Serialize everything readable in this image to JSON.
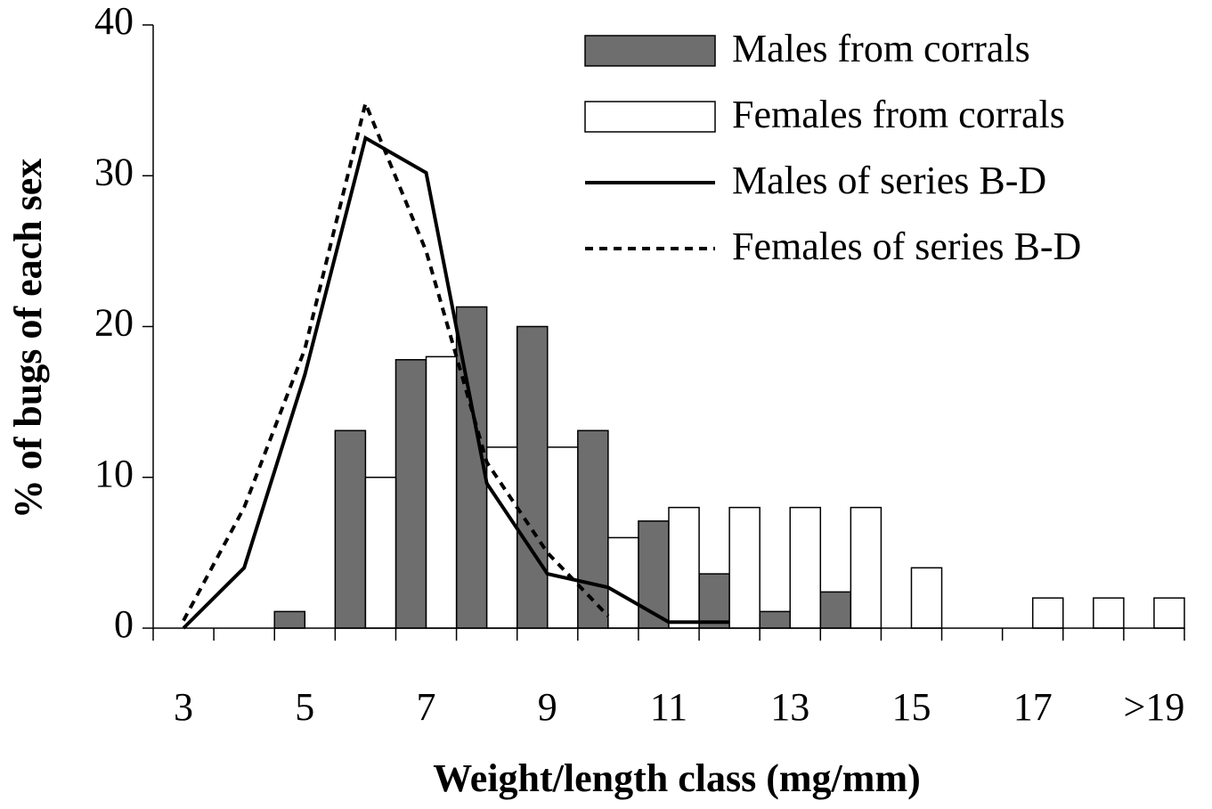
{
  "chart_data": {
    "type": "bar",
    "xlabel": "Weight/length class (mg/mm)",
    "ylabel": "% of bugs of each sex",
    "categories": [
      "3",
      null,
      "5",
      null,
      "7",
      null,
      "9",
      null,
      "11",
      null,
      "13",
      null,
      "15",
      null,
      "17",
      null,
      ">19"
    ],
    "ylim": [
      0,
      40
    ],
    "yticks": [
      0,
      10,
      20,
      30,
      40
    ],
    "legend": "upper right",
    "series": [
      {
        "name": "Males from corrals",
        "type": "bar",
        "color": "#6e6e6e",
        "values": [
          0,
          0,
          1.1,
          13.1,
          17.8,
          21.3,
          20,
          13.1,
          7.1,
          3.6,
          1.1,
          2.4,
          0,
          0,
          0,
          0,
          0
        ]
      },
      {
        "name": "Females from corrals",
        "type": "bar",
        "color": "#ffffff",
        "values": [
          0,
          0,
          0,
          10,
          18,
          12,
          12,
          6,
          8,
          8,
          8,
          8,
          4,
          0,
          2,
          2,
          2
        ]
      },
      {
        "name": "Males of series B-D",
        "type": "line",
        "color": "#000000",
        "dash": false,
        "values": [
          0,
          4,
          16.8,
          32.5,
          30.2,
          9.6,
          3.6,
          2.7,
          0.4,
          0.4,
          null,
          null,
          null,
          null,
          null,
          null,
          null
        ]
      },
      {
        "name": "Females of series B-D",
        "type": "line",
        "color": "#000000",
        "dash": true,
        "values": [
          0.5,
          8,
          18.5,
          34.8,
          25,
          11,
          5,
          0.8,
          null,
          null,
          null,
          null,
          null,
          null,
          null,
          null,
          null
        ]
      }
    ]
  }
}
